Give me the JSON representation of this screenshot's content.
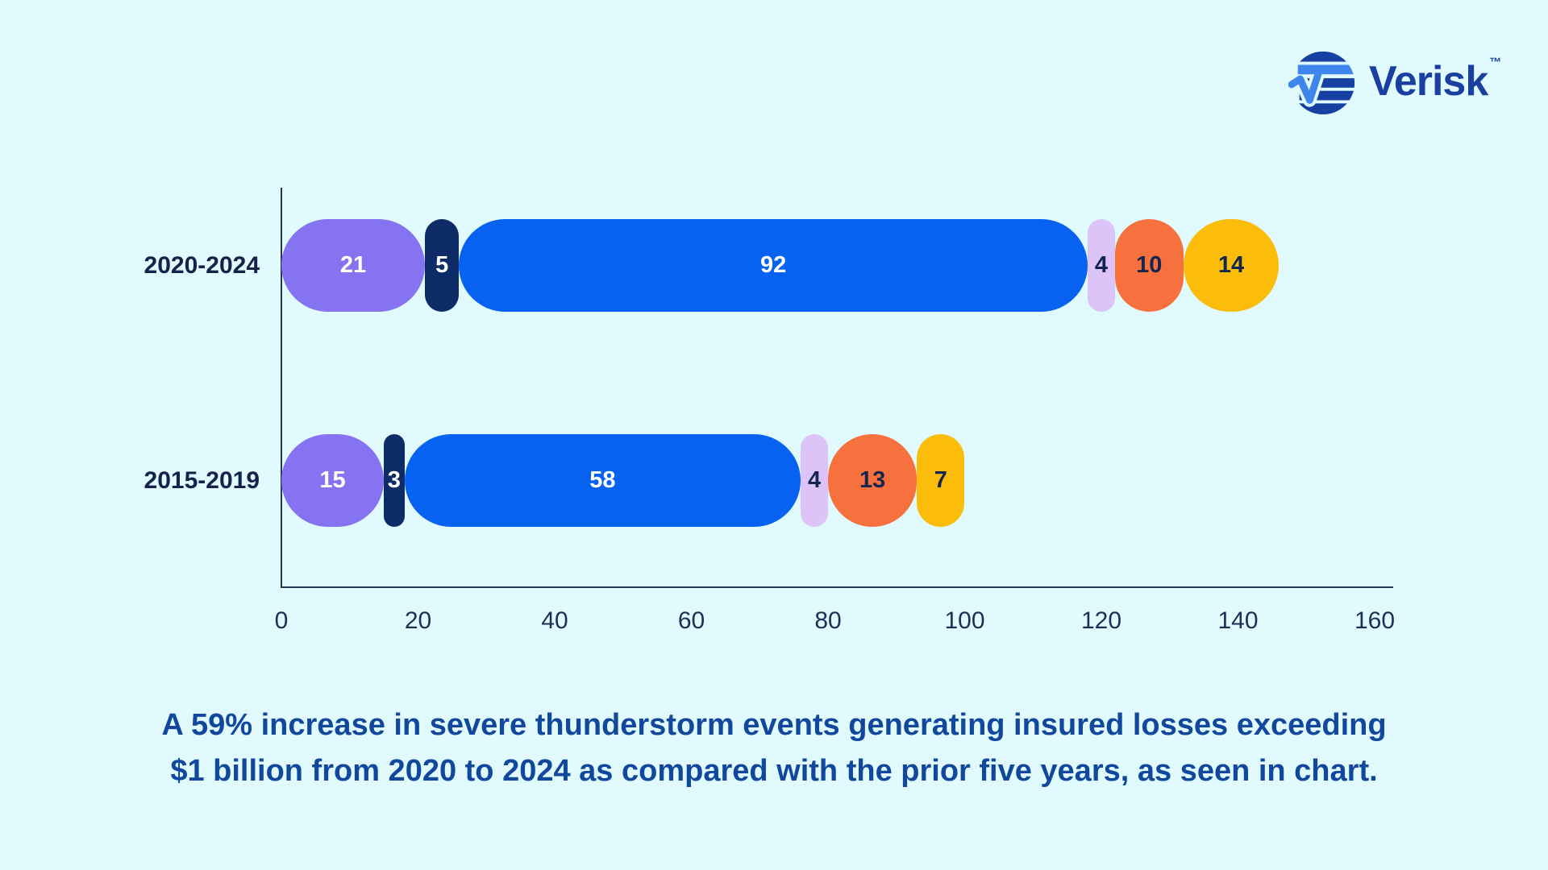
{
  "logo": {
    "brand": "Verisk",
    "trademark": "™",
    "icon": "verisk-striped-globe-check",
    "colors": {
      "dark_blue": "#1641A3",
      "light_blue": "#3E86EC",
      "wordmark": "#1A3FA0"
    }
  },
  "chart_data": {
    "type": "bar",
    "orientation": "horizontal",
    "stacked": true,
    "title": "",
    "xlabel": "",
    "ylabel": "",
    "categories": [
      "2020-2024",
      "2015-2019"
    ],
    "series": [
      {
        "name": "purple-segment",
        "color": "#8673F1",
        "label_color": "#FFFFFF",
        "values": [
          21,
          15
        ]
      },
      {
        "name": "navy-segment",
        "color": "#0D2B67",
        "label_color": "#FFFFFF",
        "values": [
          5,
          3
        ]
      },
      {
        "name": "blue-segment",
        "color": "#0762F1",
        "label_color": "#FFFFFF",
        "values": [
          92,
          58
        ]
      },
      {
        "name": "lavender-segment",
        "color": "#DCC3F8",
        "label_color": "#14264E",
        "values": [
          4,
          4
        ]
      },
      {
        "name": "orange-segment",
        "color": "#F7713F",
        "label_color": "#14264E",
        "values": [
          10,
          13
        ]
      },
      {
        "name": "gold-segment",
        "color": "#FBBD09",
        "label_color": "#14264E",
        "values": [
          14,
          7
        ]
      }
    ],
    "row_totals": [
      146,
      100
    ],
    "x_ticks": [
      0,
      20,
      40,
      60,
      80,
      100,
      120,
      140,
      160
    ],
    "xlim": [
      0,
      163
    ],
    "grid": false,
    "legend": false
  },
  "caption": {
    "line1": "A 59% increase in severe thunderstorm events generating insured losses exceeding",
    "line2": "$1 billion from 2020 to 2024 as compared with the prior five years, as seen in chart."
  },
  "page": {
    "background": "#E0FAFD"
  }
}
